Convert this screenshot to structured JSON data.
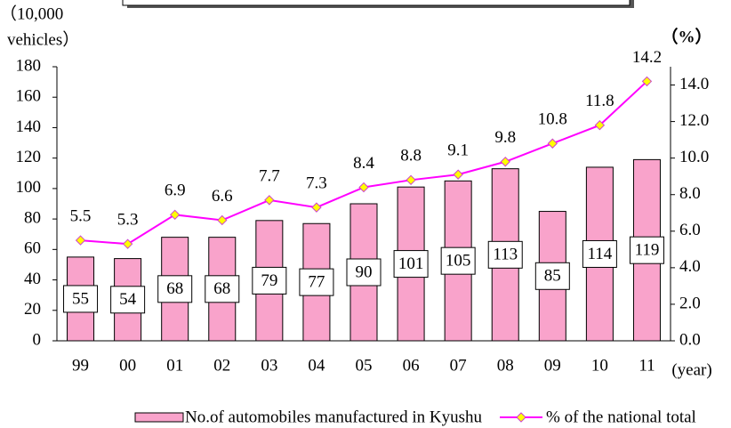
{
  "chart_data": {
    "type": "bar_line",
    "ylabel": [
      "（10,000",
      "vehicles）"
    ],
    "y2label": "（%）",
    "xlabel": "(year)",
    "categories": [
      "99",
      "00",
      "01",
      "02",
      "03",
      "04",
      "05",
      "06",
      "07",
      "08",
      "09",
      "10",
      "11"
    ],
    "series": [
      {
        "name": "No.of automobiles manufactured in Kyushu",
        "type": "bar",
        "color": "#f9a3cb",
        "values": [
          55,
          54,
          68,
          68,
          79,
          77,
          90,
          101,
          105,
          113,
          85,
          114,
          119
        ]
      },
      {
        "name": "% of the national total",
        "type": "line",
        "axis": "y2",
        "color": "#ff00ff",
        "marker_color": "#ffff00",
        "values": [
          5.5,
          5.3,
          6.9,
          6.6,
          7.7,
          7.3,
          8.4,
          8.8,
          9.1,
          9.8,
          10.8,
          11.8,
          14.2
        ]
      }
    ],
    "ylim": [
      0,
      180
    ],
    "yticks": [
      0,
      20,
      40,
      60,
      80,
      100,
      120,
      140,
      160,
      180
    ],
    "y2lim": [
      0,
      15
    ],
    "y2ticks": [
      {
        "value": 0,
        "label": "0.0"
      },
      {
        "value": 2,
        "label": "2.0"
      },
      {
        "value": 4,
        "label": "4.0"
      },
      {
        "value": 6,
        "label": "6.0"
      },
      {
        "value": 8,
        "label": "8.0"
      },
      {
        "value": 10,
        "label": "10.0"
      },
      {
        "value": 12,
        "label": "12.0"
      },
      {
        "value": 14,
        "label": "14.0"
      }
    ]
  }
}
